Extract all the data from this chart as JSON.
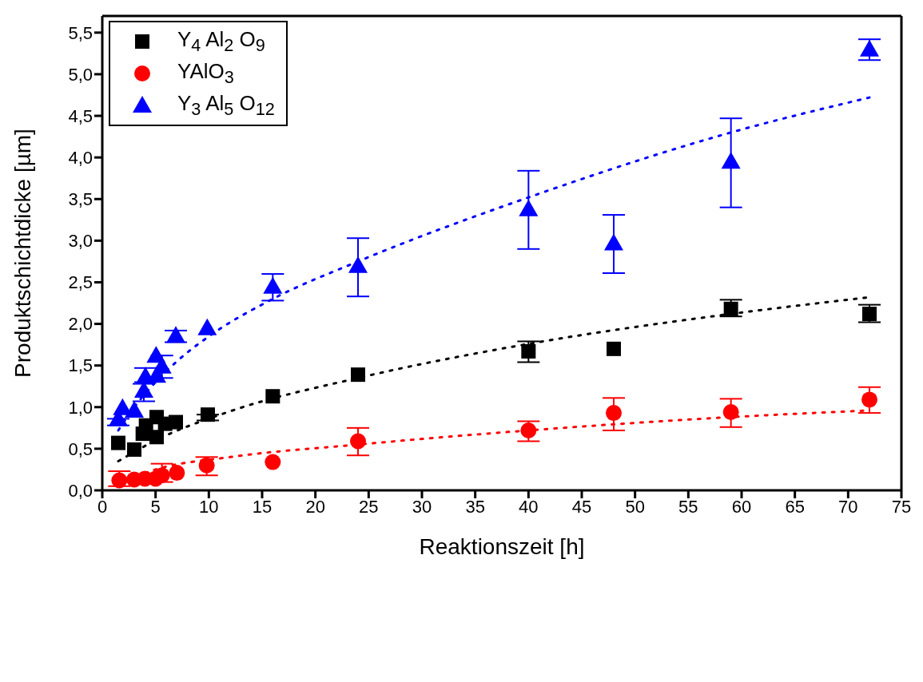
{
  "chart_data": {
    "type": "scatter",
    "xlabel": "Reaktionszeit [h]",
    "ylabel": "Produktschichtdicke [µm]",
    "xlim": [
      0,
      75
    ],
    "xticks": [
      0,
      5,
      10,
      15,
      20,
      25,
      30,
      35,
      40,
      45,
      50,
      55,
      60,
      65,
      70,
      75
    ],
    "ylim": [
      0,
      5.7
    ],
    "yticks": [
      {
        "value": 0,
        "label": "0,0"
      },
      {
        "value": 0.5,
        "label": "0,5"
      },
      {
        "value": 1,
        "label": "1,0"
      },
      {
        "value": 1.5,
        "label": "1,5"
      },
      {
        "value": 2,
        "label": "2,0"
      },
      {
        "value": 2.5,
        "label": "2,5"
      },
      {
        "value": 3,
        "label": "3,0"
      },
      {
        "value": 3.5,
        "label": "3,5"
      },
      {
        "value": 4,
        "label": "4,0"
      },
      {
        "value": 4.5,
        "label": "4,5"
      },
      {
        "value": 5,
        "label": "5,0"
      },
      {
        "value": 5.5,
        "label": "5,5"
      }
    ],
    "grid": false,
    "legend": "top left",
    "series": [
      {
        "name": "Y$_{4}$ Al$_{2}$ O$_{9}$",
        "color": "#000000",
        "marker": "square",
        "x": [
          1.5,
          3.0,
          3.8,
          4.1,
          5.1,
          5.1,
          5.9,
          6.9,
          9.9,
          16,
          24,
          40,
          48,
          59,
          72
        ],
        "values": [
          0.57,
          0.49,
          0.68,
          0.78,
          0.88,
          0.64,
          0.8,
          0.82,
          0.91,
          1.13,
          1.39,
          1.67,
          1.7,
          2.18,
          2.12
        ],
        "errors": [
          null,
          null,
          null,
          null,
          null,
          null,
          null,
          null,
          [
            0.84,
            0.91
          ],
          null,
          null,
          [
            1.54,
            1.79
          ],
          null,
          [
            2.09,
            2.29
          ],
          [
            2.02,
            2.23
          ]
        ]
      },
      {
        "name": "YAlO$_{3}$",
        "color": "#ff0000",
        "marker": "circle",
        "x": [
          1.6,
          3.0,
          4.0,
          5.0,
          5.6,
          7.0,
          9.8,
          16,
          24,
          40,
          48,
          59,
          72
        ],
        "values": [
          0.12,
          0.13,
          0.14,
          0.14,
          0.18,
          0.21,
          0.3,
          0.34,
          0.59,
          0.72,
          0.93,
          0.94,
          1.09
        ],
        "errors": [
          [
            0.05,
            0.23
          ],
          null,
          null,
          null,
          [
            0.1,
            0.32
          ],
          null,
          [
            0.18,
            0.4
          ],
          null,
          [
            0.42,
            0.75
          ],
          [
            0.59,
            0.83
          ],
          [
            0.72,
            1.11
          ],
          [
            0.76,
            1.1
          ],
          [
            0.93,
            1.24
          ]
        ]
      },
      {
        "name": "Y$_{3}$ Al$_{5}$ O$_{12}$",
        "color": "#0000ff",
        "marker": "triangle",
        "x": [
          1.5,
          1.9,
          3.0,
          3.9,
          4.05,
          5.1,
          5.05,
          5.6,
          6.9,
          9.85,
          16,
          24,
          40,
          48,
          59,
          72
        ],
        "values": [
          0.86,
          0.99,
          0.96,
          1.2,
          1.37,
          1.38,
          1.62,
          1.49,
          1.86,
          1.95,
          2.45,
          2.7,
          3.38,
          2.97,
          3.95,
          5.3
        ],
        "errors": [
          [
            0.78,
            0.86
          ],
          null,
          null,
          [
            1.07,
            1.28
          ],
          [
            1.3,
            1.47
          ],
          null,
          null,
          [
            1.35,
            1.62
          ],
          [
            1.78,
            1.92
          ],
          null,
          [
            2.28,
            2.6
          ],
          [
            2.33,
            3.03
          ],
          [
            2.9,
            3.84
          ],
          [
            2.61,
            3.31
          ],
          [
            3.4,
            4.47
          ],
          [
            5.17,
            5.42
          ]
        ]
      },
      {
        "type": "line",
        "line_style": "dotted",
        "color": "#000000",
        "x": [
          1.5,
          5,
          12,
          24,
          40,
          59,
          72
        ],
        "values": [
          0.35,
          0.6,
          0.95,
          1.35,
          1.76,
          2.12,
          2.32
        ]
      },
      {
        "type": "line",
        "line_style": "dotted",
        "color": "#ff0000",
        "x": [
          1.5,
          5,
          12,
          24,
          40,
          59,
          72
        ],
        "values": [
          0.08,
          0.25,
          0.4,
          0.55,
          0.72,
          0.88,
          0.96
        ]
      },
      {
        "type": "line",
        "line_style": "dotted",
        "color": "#0000ff",
        "x": [
          1.5,
          3,
          5,
          7,
          10,
          16,
          24,
          40,
          59,
          72
        ],
        "values": [
          0.72,
          1.0,
          1.3,
          1.55,
          1.85,
          2.3,
          2.75,
          3.52,
          4.3,
          4.72
        ]
      }
    ]
  }
}
